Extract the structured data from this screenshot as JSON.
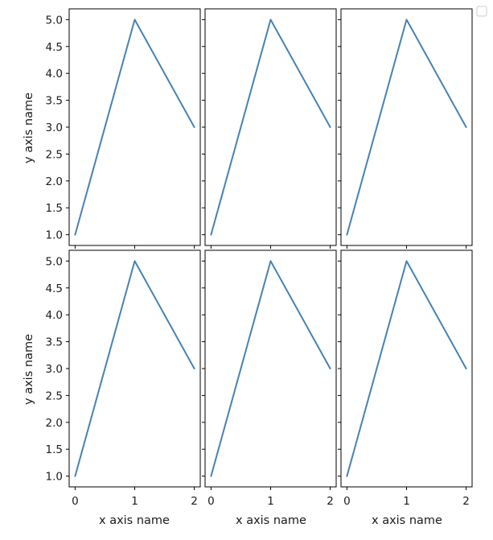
{
  "chart_data": {
    "type": "line",
    "layout": {
      "rows": 2,
      "cols": 3,
      "sharex": true,
      "sharey": true
    },
    "xlabel": "x axis name",
    "ylabel": "y axis name",
    "xlim": [
      -0.1,
      2.1
    ],
    "ylim": [
      0.8,
      5.2
    ],
    "xticks": [
      0,
      1,
      2
    ],
    "xtick_labels": [
      "0",
      "1",
      "2"
    ],
    "yticks": [
      1.0,
      1.5,
      2.0,
      2.5,
      3.0,
      3.5,
      4.0,
      4.5,
      5.0
    ],
    "ytick_labels": [
      "1.0",
      "1.5",
      "2.0",
      "2.5",
      "3.0",
      "3.5",
      "4.0",
      "4.5",
      "5.0"
    ],
    "grid": false,
    "legend": "top-right, empty",
    "line_color": "#4682b4",
    "panels": [
      {
        "series": [
          {
            "x": [
              0,
              1,
              2
            ],
            "y": [
              1,
              5,
              3
            ]
          }
        ]
      },
      {
        "series": [
          {
            "x": [
              0,
              1,
              2
            ],
            "y": [
              1,
              5,
              3
            ]
          }
        ]
      },
      {
        "series": [
          {
            "x": [
              0,
              1,
              2
            ],
            "y": [
              1,
              5,
              3
            ]
          }
        ]
      },
      {
        "series": [
          {
            "x": [
              0,
              1,
              2
            ],
            "y": [
              1,
              5,
              3
            ]
          }
        ]
      },
      {
        "series": [
          {
            "x": [
              0,
              1,
              2
            ],
            "y": [
              1,
              5,
              3
            ]
          }
        ]
      },
      {
        "series": [
          {
            "x": [
              0,
              1,
              2
            ],
            "y": [
              1,
              5,
              3
            ]
          }
        ]
      }
    ]
  }
}
